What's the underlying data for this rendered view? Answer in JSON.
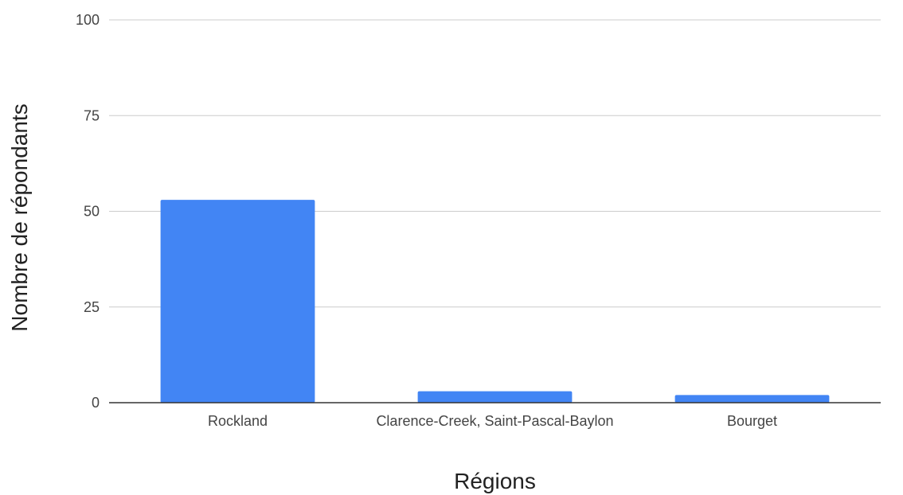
{
  "chart_data": {
    "type": "bar",
    "title": "",
    "xlabel": "Régions",
    "ylabel": "Nombre de répondants",
    "categories": [
      "Rockland",
      "Clarence-Creek, Saint-Pascal-Baylon",
      "Bourget"
    ],
    "values": [
      53,
      3,
      2
    ],
    "ylim": [
      0,
      100
    ],
    "yticks": [
      0,
      25,
      50,
      75,
      100
    ],
    "grid": true,
    "legend": "none",
    "bar_color": "#4285f4"
  }
}
